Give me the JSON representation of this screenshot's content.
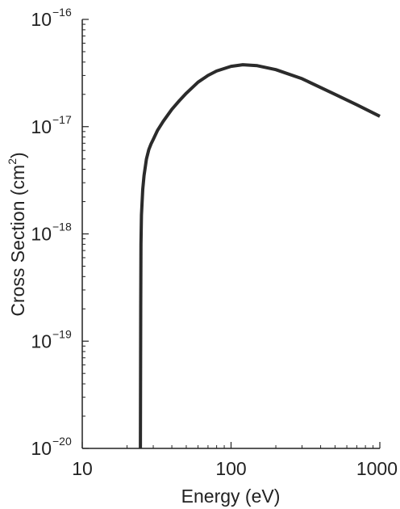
{
  "chart_data": {
    "type": "line",
    "title": "",
    "xlabel": "Energy (eV)",
    "ylabel_main": "Cross Section (cm",
    "ylabel_exp": "2",
    "ylabel_close": ")",
    "x_scale": "log",
    "y_scale": "log",
    "xlim": [
      10,
      1000
    ],
    "ylim": [
      1e-20,
      1e-16
    ],
    "x_ticks": [
      {
        "value": 10,
        "label": "10"
      },
      {
        "value": 100,
        "label": "100"
      },
      {
        "value": 1000,
        "label": "1000"
      }
    ],
    "y_ticks": [
      {
        "value": 1e-20,
        "base": "10",
        "exp": "−20"
      },
      {
        "value": 1e-19,
        "base": "10",
        "exp": "−19"
      },
      {
        "value": 1e-18,
        "base": "10",
        "exp": "−18"
      },
      {
        "value": 1e-17,
        "base": "10",
        "exp": "−17"
      },
      {
        "value": 1e-16,
        "base": "10",
        "exp": "−16"
      }
    ],
    "series": [
      {
        "name": "cross-section",
        "color": "#2b2b2b",
        "x": [
          24.6,
          24.7,
          24.8,
          25.0,
          25.5,
          26,
          27,
          28,
          29,
          30,
          32,
          35,
          40,
          45,
          50,
          60,
          70,
          80,
          100,
          120,
          150,
          200,
          300,
          500,
          700,
          1000
        ],
        "y": [
          1e-20,
          2e-19,
          8e-19,
          1.5e-18,
          2.6e-18,
          3.5e-18,
          5e-18,
          6.1e-18,
          6.9e-18,
          7.6e-18,
          9.2e-18,
          1.12e-17,
          1.45e-17,
          1.75e-17,
          2.05e-17,
          2.6e-17,
          3e-17,
          3.3e-17,
          3.65e-17,
          3.78e-17,
          3.7e-17,
          3.4e-17,
          2.8e-17,
          2e-17,
          1.6e-17,
          1.25e-17
        ]
      }
    ]
  }
}
